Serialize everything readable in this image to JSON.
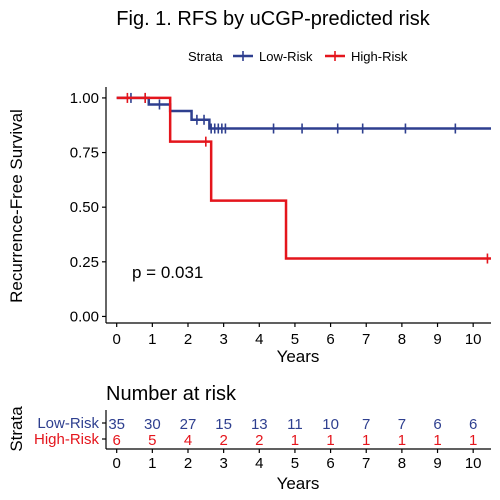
{
  "chart_data": {
    "type": "line",
    "subtype": "kaplan-meier",
    "title": "Fig. 1. RFS by uCGP-predicted risk",
    "legend": {
      "title": "Strata",
      "placement": "top",
      "entries": [
        "Low-Risk",
        "High-Risk"
      ]
    },
    "xlabel": "Years",
    "ylabel": "Recurrence-Free Survival",
    "xlim": [
      -0.3,
      10.5
    ],
    "ylim": [
      -0.03,
      1.05
    ],
    "xticks": [
      0,
      1,
      2,
      3,
      4,
      5,
      6,
      7,
      8,
      9,
      10
    ],
    "yticks": [
      0.0,
      0.25,
      0.5,
      0.75,
      1.0
    ],
    "ytick_labels": [
      "0.00",
      "0.25",
      "0.50",
      "0.75",
      "1.00"
    ],
    "grid": false,
    "annotation": "p = 0.031",
    "series": [
      {
        "name": "Low-Risk",
        "color": "#2E3F8F",
        "steps": [
          [
            0,
            1.0
          ],
          [
            0.9,
            0.97
          ],
          [
            1.5,
            0.94
          ],
          [
            2.1,
            0.9
          ],
          [
            2.6,
            0.86
          ],
          [
            10.5,
            0.86
          ]
        ],
        "censor_times": [
          0.4,
          0.8,
          1.2,
          2.25,
          2.45,
          2.65,
          2.75,
          2.85,
          2.95,
          3.05,
          4.4,
          5.2,
          6.2,
          6.9,
          8.1,
          9.5
        ]
      },
      {
        "name": "High-Risk",
        "color": "#E4151C",
        "steps": [
          [
            0,
            1.0
          ],
          [
            1.5,
            0.8
          ],
          [
            2.65,
            0.53
          ],
          [
            4.75,
            0.265
          ],
          [
            10.5,
            0.265
          ]
        ],
        "censor_times": [
          0.3,
          0.8,
          2.5,
          10.4
        ]
      }
    ],
    "risk_table": {
      "title": "Number at risk",
      "ylabel": "Strata",
      "xlabel": "Years",
      "times": [
        0,
        1,
        2,
        3,
        4,
        5,
        6,
        7,
        8,
        9,
        10
      ],
      "rows": [
        {
          "name": "Low-Risk",
          "counts": [
            35,
            30,
            27,
            15,
            13,
            11,
            10,
            7,
            7,
            6,
            6
          ]
        },
        {
          "name": "High-Risk",
          "counts": [
            6,
            5,
            4,
            2,
            2,
            1,
            1,
            1,
            1,
            1,
            1
          ]
        }
      ]
    }
  }
}
